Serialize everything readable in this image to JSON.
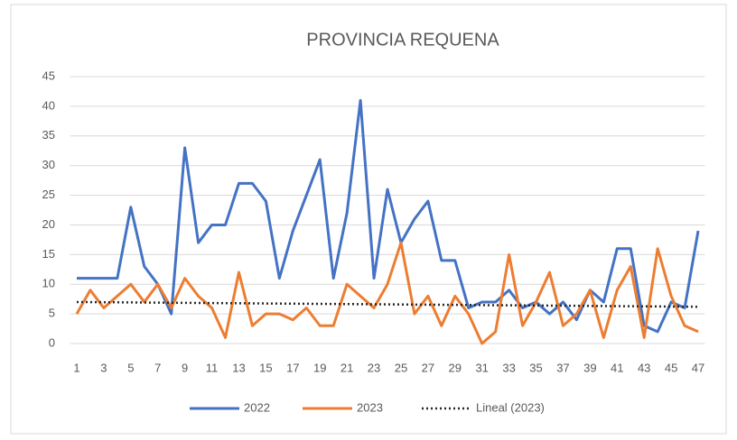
{
  "chart_data": {
    "type": "line",
    "title": "PROVINCIA REQUENA",
    "x": [
      1,
      2,
      3,
      4,
      5,
      6,
      7,
      8,
      9,
      10,
      11,
      12,
      13,
      14,
      15,
      16,
      17,
      18,
      19,
      20,
      21,
      22,
      23,
      24,
      25,
      26,
      27,
      28,
      29,
      30,
      31,
      32,
      33,
      34,
      35,
      36,
      37,
      38,
      39,
      40,
      41,
      42,
      43,
      44,
      45,
      46,
      47
    ],
    "xlim": [
      0.5,
      47.5
    ],
    "xticks": [
      1,
      3,
      5,
      7,
      9,
      11,
      13,
      15,
      17,
      19,
      21,
      23,
      25,
      27,
      29,
      31,
      33,
      35,
      37,
      39,
      41,
      43,
      45,
      47
    ],
    "ylim": [
      0,
      45
    ],
    "yticks": [
      0,
      5,
      10,
      15,
      20,
      25,
      30,
      35,
      40,
      45
    ],
    "grid": true,
    "legend": "bottom",
    "series": [
      {
        "name": "2022",
        "color": "#4472c4",
        "dash": "solid",
        "values": [
          11,
          11,
          11,
          11,
          23,
          13,
          10,
          5,
          33,
          17,
          20,
          20,
          27,
          27,
          24,
          11,
          19,
          25,
          31,
          11,
          22,
          41,
          11,
          26,
          17,
          21,
          24,
          14,
          14,
          6,
          7,
          7,
          9,
          6,
          7,
          5,
          7,
          4,
          9,
          7,
          16,
          16,
          3,
          2,
          7,
          6,
          19
        ]
      },
      {
        "name": "2023",
        "color": "#ed7d31",
        "dash": "solid",
        "values": [
          5,
          9,
          6,
          8,
          10,
          7,
          10,
          6,
          11,
          8,
          6,
          1,
          12,
          3,
          5,
          5,
          4,
          6,
          3,
          3,
          10,
          8,
          6,
          10,
          17,
          5,
          8,
          3,
          8,
          5,
          0,
          2,
          15,
          3,
          7,
          12,
          3,
          5,
          9,
          1,
          9,
          13,
          1,
          16,
          8,
          3,
          2
        ]
      },
      {
        "name": "Lineal (2023)",
        "color": "#262626",
        "dash": "dotted",
        "x": [
          1,
          47
        ],
        "values": [
          7.0,
          6.2
        ]
      }
    ]
  }
}
